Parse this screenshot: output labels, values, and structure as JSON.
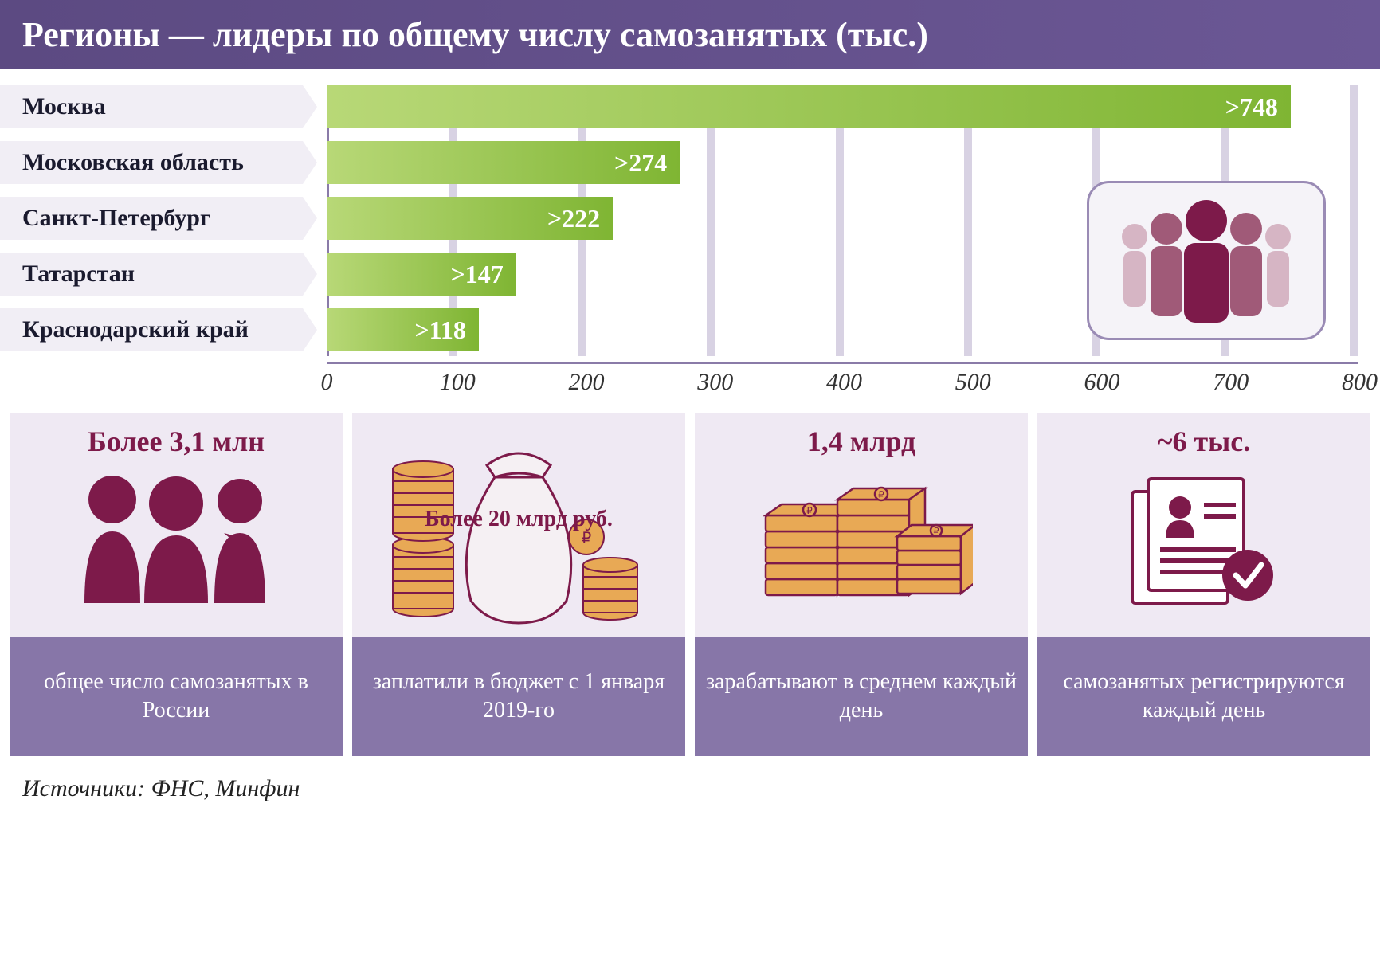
{
  "title": "Регионы — лидеры по общему числу самозанятых (тыс.)",
  "chart": {
    "type": "bar",
    "x_max": 800,
    "x_tick_step": 100,
    "ticks": [
      "0",
      "100",
      "200",
      "300",
      "400",
      "500",
      "600",
      "700",
      "800"
    ],
    "bars": [
      {
        "label": "Москва",
        "value": 748,
        "display": ">748"
      },
      {
        "label": "Московская область",
        "value": 274,
        "display": ">274"
      },
      {
        "label": "Санкт-Петербург",
        "value": 222,
        "display": ">222"
      },
      {
        "label": "Татарстан",
        "value": 147,
        "display": ">147"
      },
      {
        "label": "Краснодарский край",
        "value": 118,
        "display": ">118"
      }
    ],
    "bar_gradient_from": "#b8d877",
    "bar_gradient_to": "#7fb533",
    "grid_color": "#d8d2e3",
    "axis_color": "#8a7ba8",
    "label_bg": "#f1eef5",
    "label_fontsize": 30,
    "value_fontsize": 32,
    "axis_fontsize": 30
  },
  "stats": [
    {
      "value": "Более 3,1 млн",
      "caption": "общее число самозанятых в России",
      "icon": "people"
    },
    {
      "value": "Более 20 млрд руб.",
      "caption": "заплатили в бюджет с 1 января 2019-го",
      "icon": "money-bag"
    },
    {
      "value": "1,4 млрд",
      "caption": "зарабатывают в среднем каждый день",
      "icon": "money-stack"
    },
    {
      "value": "~6 тыс.",
      "caption": "самозанятых регистрируются каждый день",
      "icon": "document-check"
    }
  ],
  "colors": {
    "title_bg_from": "#5c4a82",
    "title_bg_to": "#6b5795",
    "accent": "#7d1a4a",
    "stat_top_bg": "#efe9f3",
    "stat_bottom_bg": "#8776a8",
    "icon_orange": "#e8a955",
    "icon_maroon": "#7d1a4a",
    "icon_light": "#d6b5c4"
  },
  "source": "Источники: ФНС, Минфин"
}
